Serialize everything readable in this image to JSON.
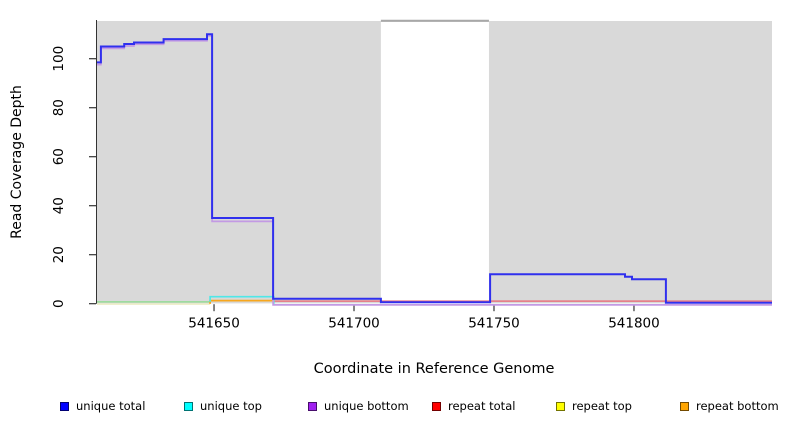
{
  "chart_data": {
    "type": "line",
    "subtype": "step-coverage",
    "title": "",
    "xlabel": "Coordinate in Reference Genome",
    "ylabel": "Read Coverage Depth",
    "xlim": [
      541608.2,
      541849.3
    ],
    "ylim": [
      0,
      115.8
    ],
    "x_ticks": [
      541650,
      541700,
      541750,
      541800
    ],
    "y_ticks": [
      0,
      20,
      40,
      60,
      80,
      100
    ],
    "grid": false,
    "legend_position": "bottom",
    "plot_bg": "#ffffff",
    "band_color": "#d9d9d9",
    "background_bands": [
      {
        "x0": 541608.2,
        "x1": 541709.6
      },
      {
        "x0": 541748.2,
        "x1": 541849.3
      }
    ],
    "top_boundary_segment": {
      "x0": 541709.6,
      "x1": 541748.2,
      "color": "#a8a8a8"
    },
    "series": [
      {
        "name": "repeat top",
        "color": "#ededc4",
        "width": 1.5,
        "points": [
          [
            541608.2,
            -0.15
          ],
          [
            541648.6,
            -0.15
          ]
        ]
      },
      {
        "name": "unique top left overlap",
        "color": "#96db96",
        "width": 1.5,
        "points": [
          [
            541608.2,
            0.75
          ],
          [
            541648.6,
            0.75
          ]
        ]
      },
      {
        "name": "repeat bottom",
        "color": "#f7a71e",
        "width": 1.8,
        "points": [
          [
            541648.6,
            -0.1
          ],
          [
            541648.6,
            1.25
          ],
          [
            541671.5,
            1.25
          ]
        ]
      },
      {
        "name": "repeat total",
        "color": "#e8737f",
        "width": 1.5,
        "points": [
          [
            541671.5,
            1.05
          ],
          [
            541849.3,
            1.05
          ]
        ]
      },
      {
        "name": "unique top",
        "color": "#50e7e7",
        "width": 1.7,
        "points": [
          [
            541648.6,
            0.75
          ],
          [
            541648.6,
            2.85
          ],
          [
            541671.3,
            2.85
          ],
          [
            541671.3,
            -0.2
          ]
        ]
      },
      {
        "name": "unique bottom",
        "color": "#c39ae4",
        "width": 1.7,
        "points": [
          [
            541608.2,
            97.6
          ],
          [
            541609.6,
            97.6
          ],
          [
            541609.6,
            104.2
          ],
          [
            541617.9,
            104.2
          ],
          [
            541617.9,
            105.2
          ],
          [
            541621.4,
            105.2
          ],
          [
            541621.4,
            105.9
          ],
          [
            541632,
            105.9
          ],
          [
            541632,
            107.3
          ],
          [
            541647.5,
            107.3
          ],
          [
            541647.5,
            109.3
          ],
          [
            541649.3,
            109.3
          ],
          [
            541649.3,
            33.6
          ],
          [
            541671.1,
            33.6
          ],
          [
            541671.1,
            -0.5
          ],
          [
            541849.3,
            -0.5
          ]
        ]
      },
      {
        "name": "unique total",
        "color": "#3030ee",
        "width": 2,
        "points": [
          [
            541608.2,
            98.5
          ],
          [
            541609.6,
            98.5
          ],
          [
            541609.6,
            105
          ],
          [
            541617.9,
            105
          ],
          [
            541617.9,
            106
          ],
          [
            541621.4,
            106
          ],
          [
            541621.4,
            106.6
          ],
          [
            541632,
            106.6
          ],
          [
            541632,
            108
          ],
          [
            541647.5,
            108
          ],
          [
            541647.5,
            110
          ],
          [
            541649.3,
            110
          ],
          [
            541649.3,
            35
          ],
          [
            541671.1,
            35
          ],
          [
            541671.1,
            2
          ],
          [
            541709.6,
            2
          ],
          [
            541709.6,
            0.6
          ],
          [
            541748.6,
            0.6
          ],
          [
            541748.6,
            12
          ],
          [
            541796.8,
            12
          ],
          [
            541796.8,
            11
          ],
          [
            541799.3,
            11
          ],
          [
            541799.3,
            10
          ],
          [
            541811.4,
            10
          ],
          [
            541811.4,
            0.4
          ],
          [
            541849.3,
            0.4
          ]
        ]
      }
    ],
    "legend": [
      {
        "label": "unique total",
        "color": "#0000ff"
      },
      {
        "label": "unique top",
        "color": "#00ffff"
      },
      {
        "label": "unique bottom",
        "color": "#a020f0"
      },
      {
        "label": "repeat total",
        "color": "#ff0000"
      },
      {
        "label": "repeat top",
        "color": "#ffff00"
      },
      {
        "label": "repeat bottom",
        "color": "#ffa500"
      }
    ]
  }
}
